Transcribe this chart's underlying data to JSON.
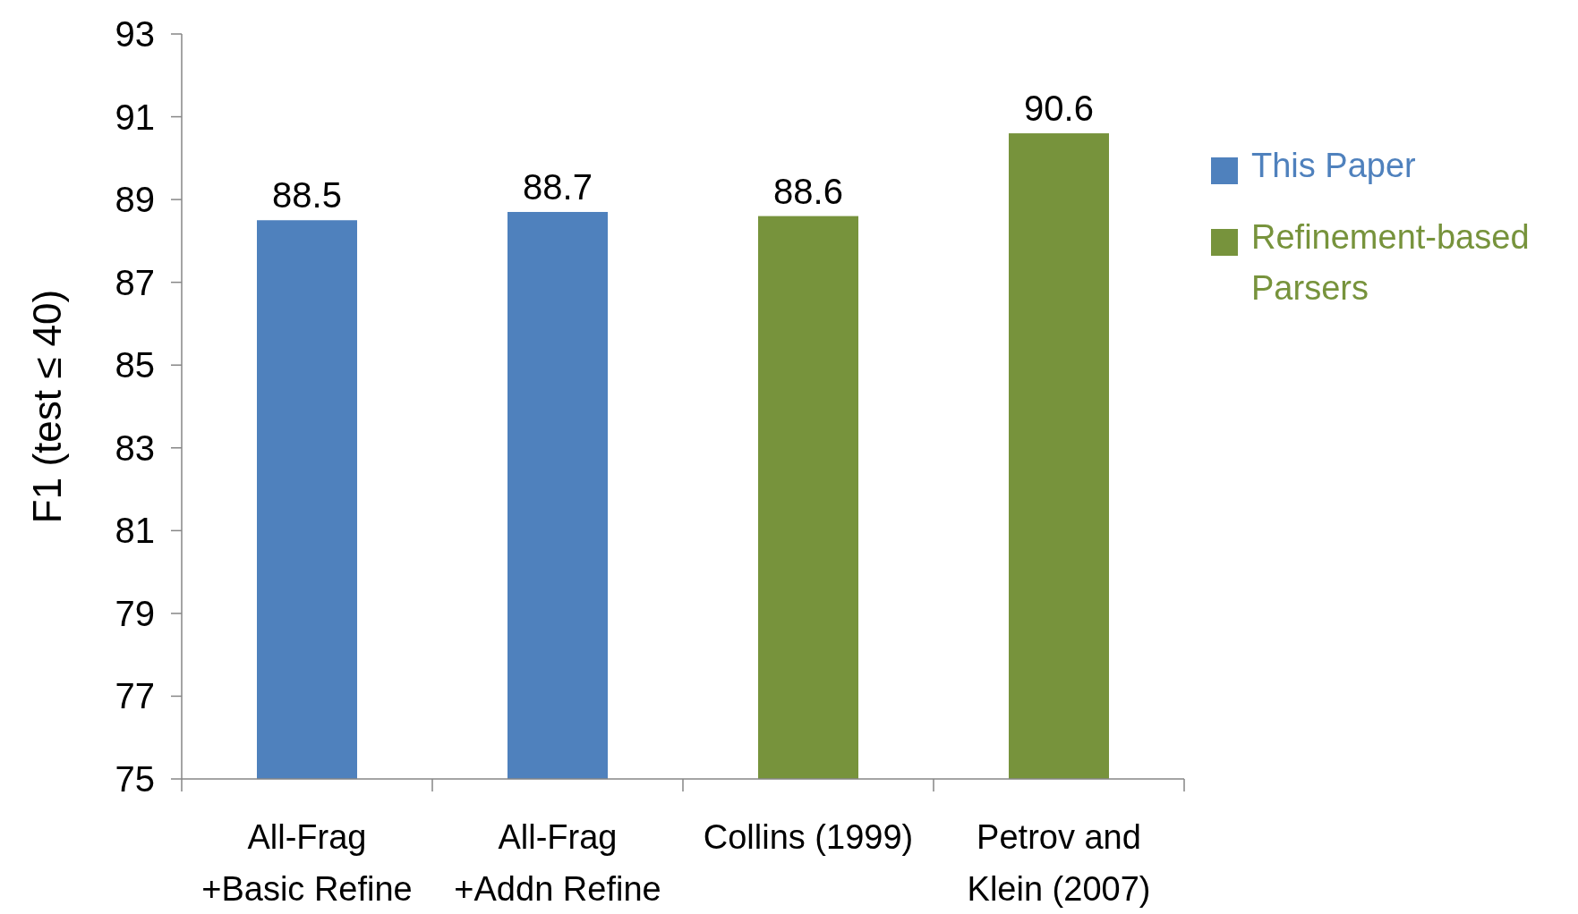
{
  "chart_data": {
    "type": "bar",
    "ylabel": "F1 (test ≤ 40)",
    "categories": [
      "All-Frag\n+Basic Refine",
      "All-Frag\n+Addn Refine",
      "Collins (1999)",
      "Petrov and\nKlein (2007)"
    ],
    "series": [
      {
        "name": "This Paper",
        "color": "#4f81bd",
        "values": [
          88.5,
          88.7,
          null,
          null
        ]
      },
      {
        "name": "Refinement-based Parsers",
        "color": "#77933c",
        "values": [
          null,
          null,
          88.6,
          90.6
        ]
      }
    ],
    "stacked": true,
    "ylim": [
      75,
      93
    ],
    "yticks": [
      75,
      77,
      79,
      81,
      83,
      85,
      87,
      89,
      91,
      93
    ],
    "data_labels": true,
    "grid": false,
    "legend": "right"
  }
}
